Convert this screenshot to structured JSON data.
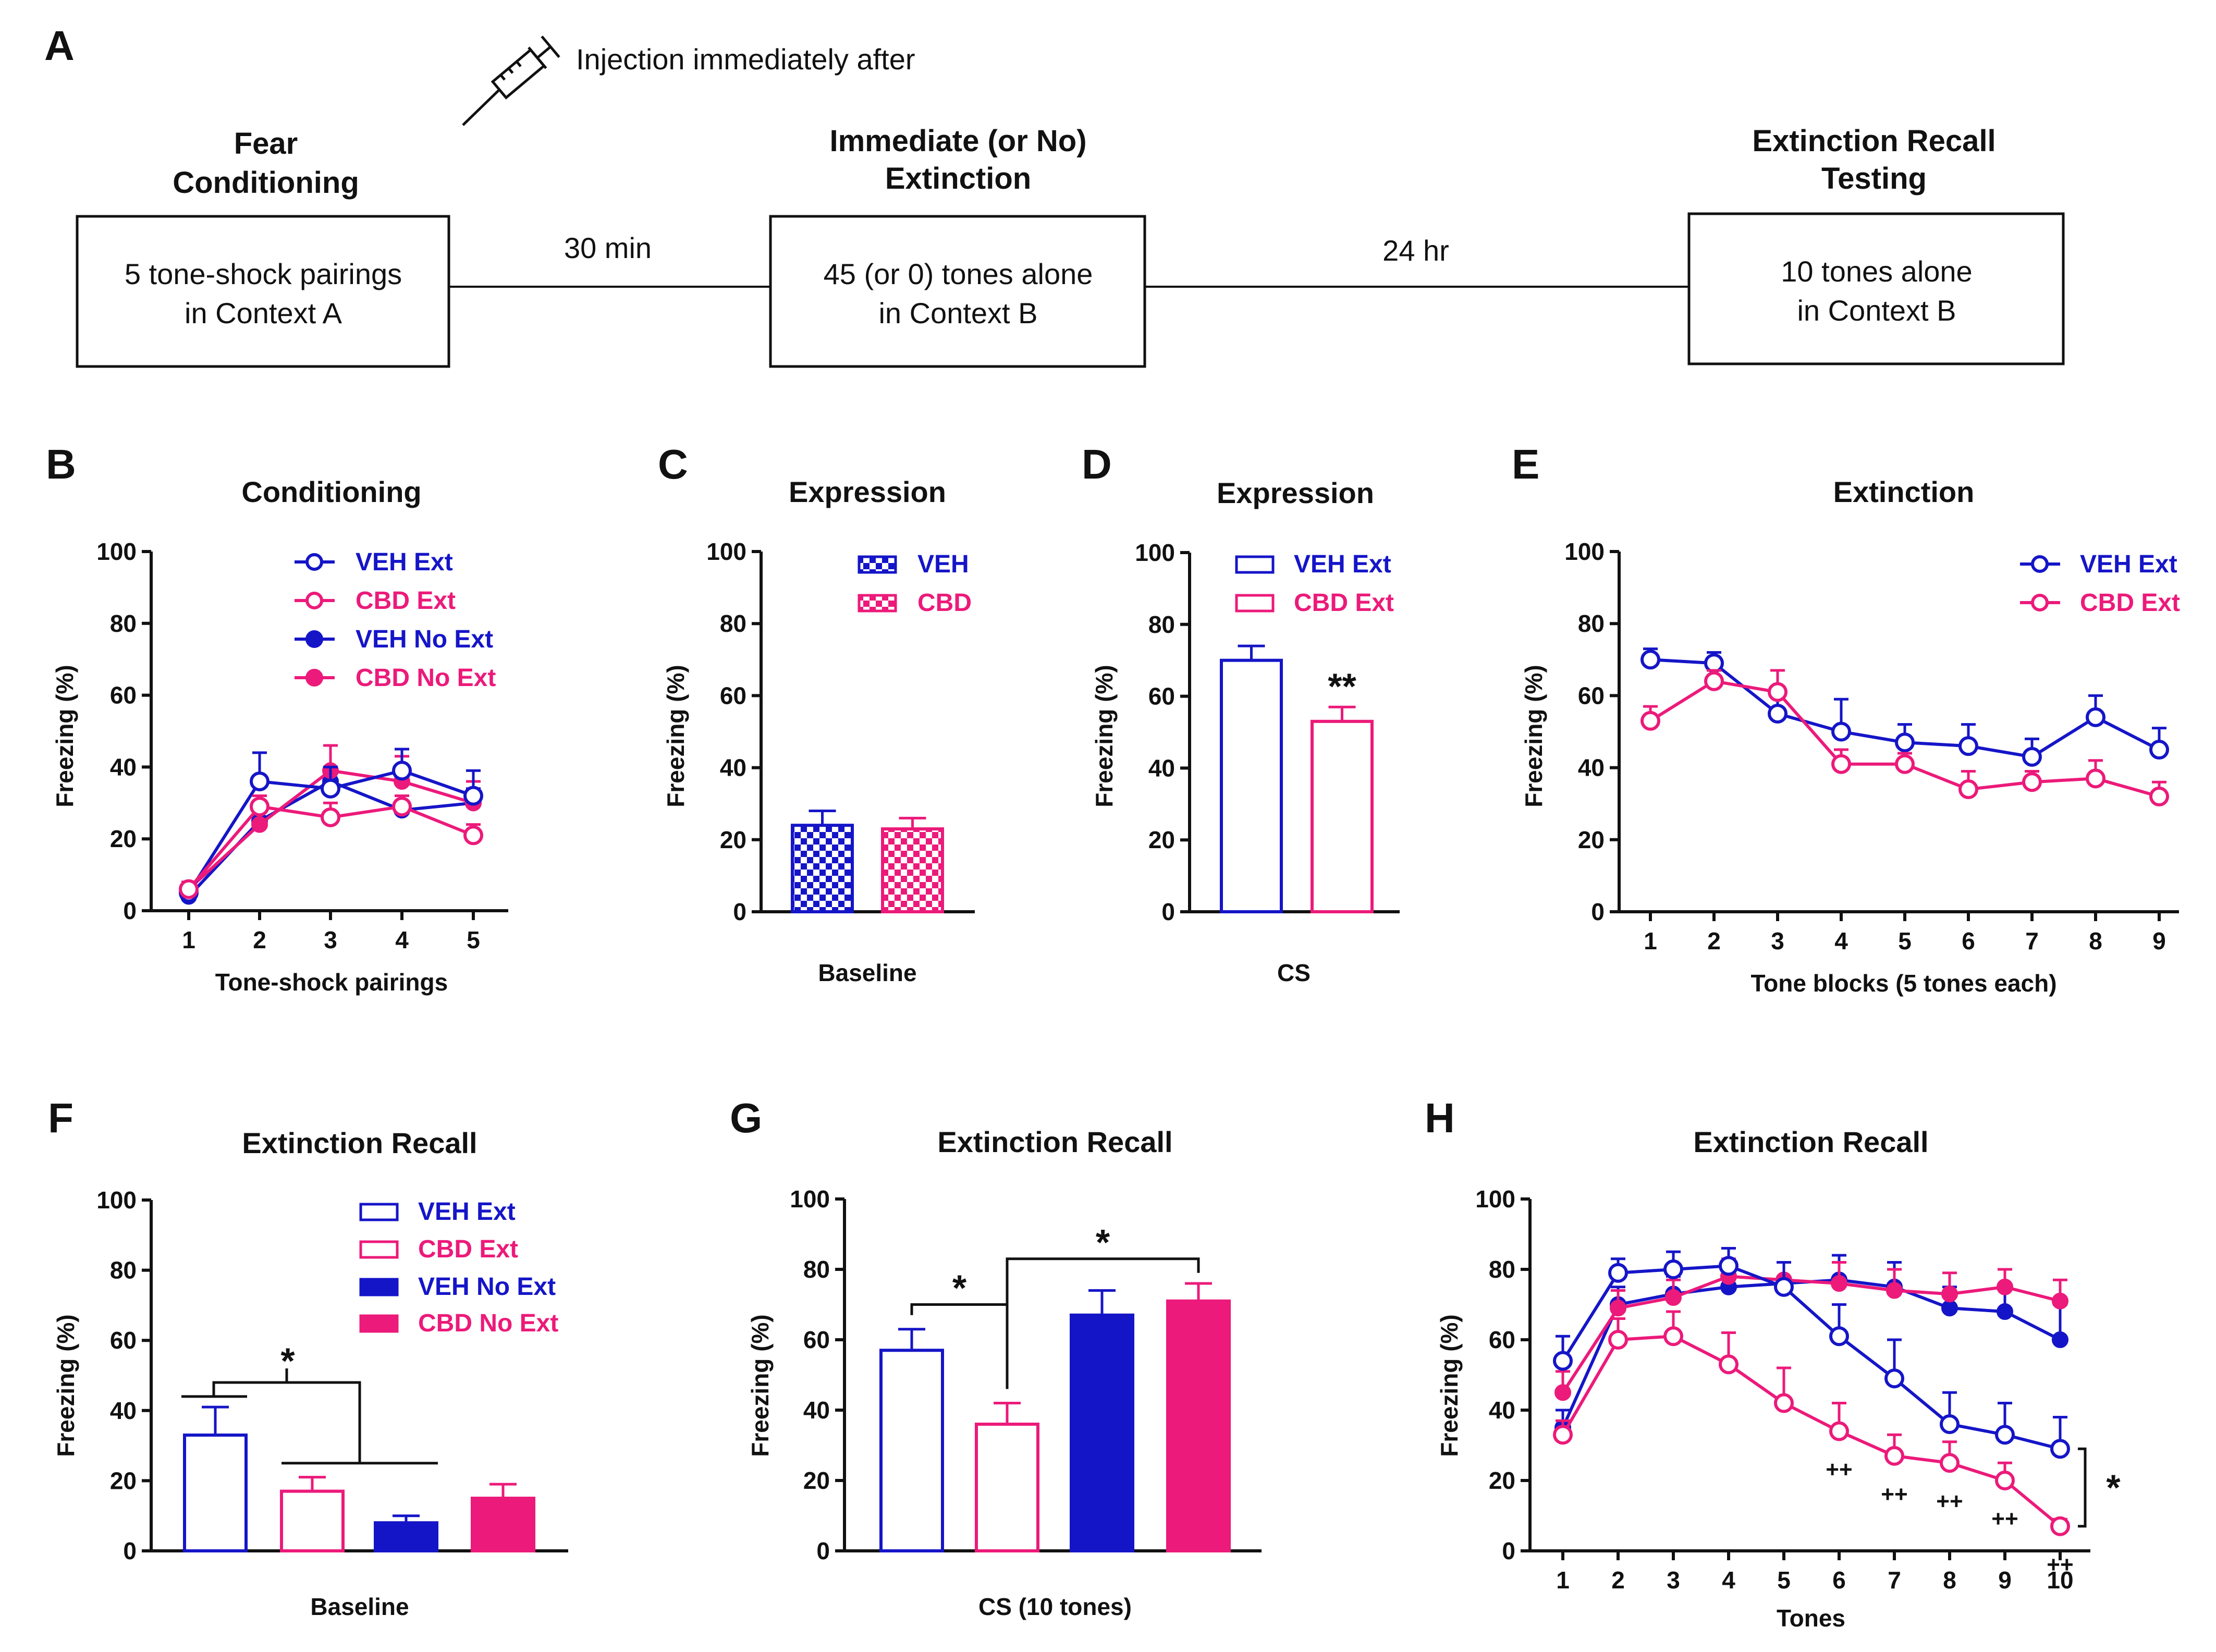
{
  "colors": {
    "veh": "#1515c8",
    "cbd": "#ec1a7a",
    "axis": "#111111"
  },
  "panel_a": {
    "letter": "A",
    "injection_label": "Injection immediately after",
    "syringe_icon": "syringe-icon",
    "stage1": {
      "title_line1": "Fear",
      "title_line2": "Conditioning",
      "box_line1": "5 tone-shock pairings",
      "box_line2": "in Context A"
    },
    "gap1": "30 min",
    "stage2": {
      "title_line1": "Immediate (or No)",
      "title_line2": "Extinction",
      "box_line1": "45 (or 0) tones alone",
      "box_line2": "in Context B"
    },
    "gap2": "24 hr",
    "stage3": {
      "title_line1": "Extinction Recall",
      "title_line2": "Testing",
      "box_line1": "10 tones alone",
      "box_line2": "in Context B"
    }
  },
  "chart_data": [
    {
      "id": "B",
      "type": "line",
      "title": "Conditioning",
      "xlabel": "Tone-shock pairings",
      "ylabel": "Freezing (%)",
      "ylim": [
        0,
        100
      ],
      "yticks": [
        0,
        20,
        40,
        60,
        80,
        100
      ],
      "x": [
        1,
        2,
        3,
        4,
        5
      ],
      "series": [
        {
          "name": "VEH Ext",
          "group": "veh",
          "filled": false,
          "values": [
            5,
            36,
            34,
            39,
            32
          ],
          "err": [
            2,
            8,
            6,
            6,
            7
          ]
        },
        {
          "name": "CBD Ext",
          "group": "cbd",
          "filled": false,
          "values": [
            6,
            29,
            26,
            29,
            21
          ],
          "err": [
            2,
            3,
            4,
            3,
            3
          ]
        },
        {
          "name": "VEH No Ext",
          "group": "veh",
          "filled": true,
          "values": [
            4,
            25,
            36,
            28,
            30
          ],
          "err": [
            2,
            3,
            4,
            4,
            4
          ]
        },
        {
          "name": "CBD No Ext",
          "group": "cbd",
          "filled": true,
          "values": [
            6,
            24,
            39,
            36,
            30
          ],
          "err": [
            2,
            4,
            7,
            7,
            6
          ]
        }
      ]
    },
    {
      "id": "C",
      "type": "bar",
      "title": "Expression",
      "xlabel": "Baseline",
      "ylabel": "Freezing (%)",
      "ylim": [
        0,
        100
      ],
      "yticks": [
        0,
        20,
        40,
        60,
        80,
        100
      ],
      "bars": [
        {
          "name": "VEH",
          "group": "veh",
          "style": "checker",
          "value": 24,
          "err": 4
        },
        {
          "name": "CBD",
          "group": "cbd",
          "style": "checker",
          "value": 23,
          "err": 3
        }
      ]
    },
    {
      "id": "D",
      "type": "bar",
      "title": "Expression",
      "xlabel": "CS",
      "ylabel": "Freezing (%)",
      "ylim": [
        0,
        100
      ],
      "yticks": [
        0,
        20,
        40,
        60,
        80,
        100
      ],
      "bars": [
        {
          "name": "VEH Ext",
          "group": "veh",
          "style": "open",
          "value": 70,
          "err": 4
        },
        {
          "name": "CBD Ext",
          "group": "cbd",
          "style": "open",
          "value": 53,
          "err": 4
        }
      ],
      "annotation": "**"
    },
    {
      "id": "E",
      "type": "line",
      "title": "Extinction",
      "xlabel": "Tone blocks (5 tones each)",
      "ylabel": "Freezing (%)",
      "ylim": [
        0,
        100
      ],
      "yticks": [
        0,
        20,
        40,
        60,
        80,
        100
      ],
      "x": [
        1,
        2,
        3,
        4,
        5,
        6,
        7,
        8,
        9
      ],
      "series": [
        {
          "name": "VEH Ext",
          "group": "veh",
          "filled": false,
          "values": [
            70,
            69,
            55,
            50,
            47,
            46,
            43,
            54,
            45
          ],
          "err": [
            3,
            3,
            5,
            9,
            5,
            6,
            5,
            6,
            6
          ]
        },
        {
          "name": "CBD Ext",
          "group": "cbd",
          "filled": false,
          "values": [
            53,
            64,
            61,
            41,
            41,
            34,
            36,
            37,
            32
          ],
          "err": [
            4,
            3,
            6,
            4,
            3,
            5,
            3,
            5,
            4
          ]
        }
      ]
    },
    {
      "id": "F",
      "type": "bar",
      "title": "Extinction Recall",
      "xlabel": "Baseline",
      "ylabel": "Freezing (%)",
      "ylim": [
        0,
        100
      ],
      "yticks": [
        0,
        20,
        40,
        60,
        80,
        100
      ],
      "bars": [
        {
          "name": "VEH Ext",
          "group": "veh",
          "style": "open",
          "value": 33,
          "err": 8
        },
        {
          "name": "CBD Ext",
          "group": "cbd",
          "style": "open",
          "value": 17,
          "err": 4
        },
        {
          "name": "VEH No Ext",
          "group": "veh",
          "style": "filled",
          "value": 8,
          "err": 2
        },
        {
          "name": "CBD No Ext",
          "group": "cbd",
          "style": "filled",
          "value": 15,
          "err": 4
        }
      ],
      "annotation": "*"
    },
    {
      "id": "G",
      "type": "bar",
      "title": "Extinction Recall",
      "xlabel": "CS (10 tones)",
      "ylabel": "Freezing (%)",
      "ylim": [
        0,
        100
      ],
      "yticks": [
        0,
        20,
        40,
        60,
        80,
        100
      ],
      "bars": [
        {
          "name": "VEH Ext",
          "group": "veh",
          "style": "open",
          "value": 57,
          "err": 6
        },
        {
          "name": "CBD Ext",
          "group": "cbd",
          "style": "open",
          "value": 36,
          "err": 6
        },
        {
          "name": "VEH No Ext",
          "group": "veh",
          "style": "filled",
          "value": 67,
          "err": 7
        },
        {
          "name": "CBD No Ext",
          "group": "cbd",
          "style": "filled",
          "value": 71,
          "err": 5
        }
      ],
      "annotations": [
        "*",
        "*"
      ]
    },
    {
      "id": "H",
      "type": "line",
      "title": "Extinction Recall",
      "xlabel": "Tones",
      "ylabel": "Freezing (%)",
      "ylim": [
        0,
        100
      ],
      "yticks": [
        0,
        20,
        40,
        60,
        80,
        100
      ],
      "x": [
        1,
        2,
        3,
        4,
        5,
        6,
        7,
        8,
        9,
        10
      ],
      "series": [
        {
          "name": "VEH Ext",
          "group": "veh",
          "filled": false,
          "values": [
            54,
            79,
            80,
            81,
            75,
            61,
            49,
            36,
            33,
            29
          ],
          "err": [
            7,
            4,
            5,
            5,
            7,
            9,
            11,
            9,
            9,
            9
          ]
        },
        {
          "name": "CBD Ext",
          "group": "cbd",
          "filled": false,
          "values": [
            33,
            60,
            61,
            53,
            42,
            34,
            27,
            25,
            20,
            7
          ],
          "err": [
            4,
            6,
            7,
            9,
            10,
            8,
            6,
            6,
            5,
            2
          ]
        },
        {
          "name": "VEH No Ext",
          "group": "veh",
          "filled": true,
          "values": [
            35,
            70,
            73,
            75,
            76,
            77,
            75,
            69,
            68,
            60
          ],
          "err": [
            5,
            5,
            5,
            5,
            6,
            7,
            7,
            6,
            7,
            10
          ]
        },
        {
          "name": "CBD No Ext",
          "group": "cbd",
          "filled": true,
          "values": [
            45,
            69,
            72,
            78,
            77,
            76,
            74,
            73,
            75,
            71
          ],
          "err": [
            6,
            5,
            5,
            5,
            5,
            6,
            6,
            6,
            5,
            6
          ]
        }
      ],
      "markers": [
        "++",
        "++",
        "++",
        "++",
        "++"
      ],
      "annotation": "*"
    }
  ]
}
